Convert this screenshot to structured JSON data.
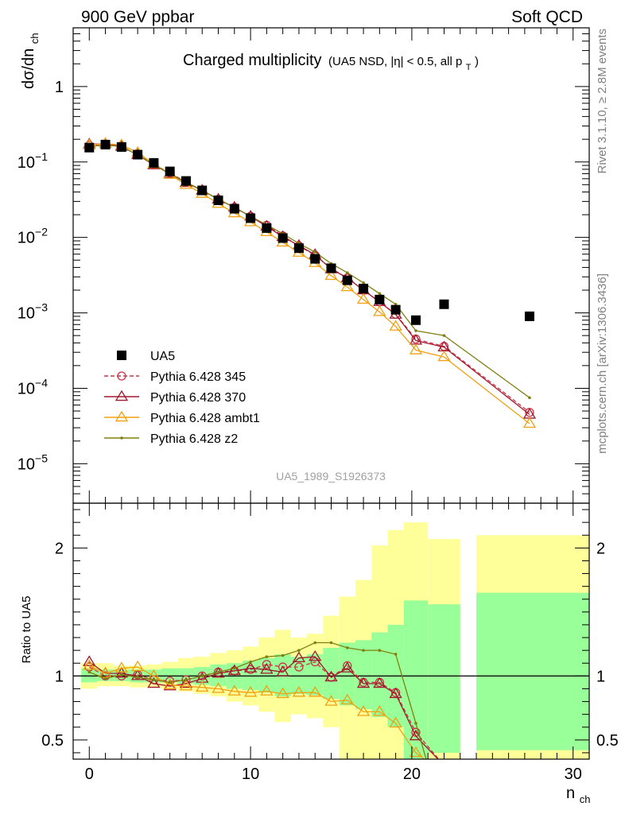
{
  "header": {
    "left": "900 GeV ppbar",
    "right": "Soft QCD"
  },
  "side_labels": {
    "rivet": "Rivet 3.1.10, ≥ 2.8M events",
    "mcplots": "mcplots.cern.ch [arXiv:1306.3436]"
  },
  "chart_data": [
    {
      "type": "line",
      "title": "Charged multiplicity",
      "subtitle": "(UA5 NSD, |η| < 0.5, all p",
      "subtitle_sub": "T",
      "subtitle_end": ")",
      "ylabel": "dσ/dn",
      "ylabel_sub": "ch",
      "xlabel": "n",
      "xlabel_sub": "ch",
      "yscale": "log",
      "xlim": [
        -1,
        31
      ],
      "ylim": [
        3e-06,
        6
      ],
      "x_ticks": [
        "0",
        "10",
        "20",
        "30"
      ],
      "y_ticks": [
        {
          "base": "10",
          "exp": "−5"
        },
        {
          "base": "10",
          "exp": "−4"
        },
        {
          "base": "10",
          "exp": "−3"
        },
        {
          "base": "10",
          "exp": "−2"
        },
        {
          "base": "10",
          "exp": "−1"
        },
        {
          "base": "1",
          "exp": ""
        }
      ],
      "watermark": "UA5_1989_S1926373",
      "legend_position": "bottom-left",
      "data": {
        "name": "UA5",
        "x": [
          0,
          1,
          2,
          3,
          4,
          5,
          6,
          7,
          8,
          9,
          10,
          11,
          12,
          13,
          14,
          15,
          16,
          17,
          18,
          19,
          20.25,
          22,
          27.3
        ],
        "y": [
          0.155,
          0.17,
          0.158,
          0.125,
          0.097,
          0.075,
          0.056,
          0.042,
          0.031,
          0.024,
          0.018,
          0.0133,
          0.0098,
          0.0072,
          0.0052,
          0.0039,
          0.0027,
          0.0021,
          0.0015,
          0.0011,
          0.0008,
          0.0013,
          0.0009
        ]
      },
      "series": [
        {
          "name": "Pythia 6.428 345",
          "color": "#cc3344",
          "marker": "circle",
          "dashed": true,
          "x": [
            0,
            1,
            2,
            3,
            4,
            5,
            6,
            7,
            8,
            9,
            10,
            11,
            12,
            13,
            14,
            15,
            16,
            17,
            18,
            19,
            20.25,
            22,
            27.3
          ],
          "y": [
            0.165,
            0.172,
            0.158,
            0.126,
            0.092,
            0.072,
            0.054,
            0.042,
            0.032,
            0.025,
            0.019,
            0.0145,
            0.0105,
            0.0077,
            0.0058,
            0.0039,
            0.0029,
            0.002,
            0.0014,
            0.00096,
            0.00045,
            0.00036,
            4.8e-05
          ]
        },
        {
          "name": "Pythia 6.428 370",
          "color": "#a01830",
          "marker": "triangle",
          "dashed": false,
          "x": [
            0,
            1,
            2,
            3,
            4,
            5,
            6,
            7,
            8,
            9,
            10,
            11,
            12,
            13,
            14,
            15,
            16,
            17,
            18,
            19,
            20.25,
            22,
            27.3
          ],
          "y": [
            0.172,
            0.174,
            0.16,
            0.124,
            0.091,
            0.07,
            0.053,
            0.042,
            0.032,
            0.025,
            0.019,
            0.014,
            0.0102,
            0.0078,
            0.0059,
            0.0038,
            0.0029,
            0.002,
            0.0014,
            0.00095,
            0.00043,
            0.00035,
            4.5e-05
          ]
        },
        {
          "name": "Pythia 6.428 ambt1",
          "color": "#f0a010",
          "marker": "triangle",
          "dashed": false,
          "x": [
            0,
            1,
            2,
            3,
            4,
            5,
            6,
            7,
            8,
            9,
            10,
            11,
            12,
            13,
            14,
            15,
            16,
            17,
            18,
            19,
            20.25,
            22,
            27.3
          ],
          "y": [
            0.168,
            0.175,
            0.168,
            0.133,
            0.094,
            0.068,
            0.05,
            0.038,
            0.028,
            0.021,
            0.016,
            0.0118,
            0.0086,
            0.0063,
            0.0046,
            0.0031,
            0.0022,
            0.0015,
            0.00103,
            0.00066,
            0.00032,
            0.00026,
            3.4e-05
          ]
        },
        {
          "name": "Pythia 6.428 z2",
          "color": "#808010",
          "marker": "dot",
          "dashed": false,
          "x": [
            0,
            1,
            2,
            3,
            4,
            5,
            6,
            7,
            8,
            9,
            10,
            11,
            12,
            13,
            14,
            15,
            16,
            17,
            18,
            19,
            20.25,
            22,
            27.3
          ],
          "y": [
            0.16,
            0.168,
            0.16,
            0.124,
            0.092,
            0.07,
            0.054,
            0.042,
            0.032,
            0.025,
            0.019,
            0.0147,
            0.0112,
            0.0083,
            0.0064,
            0.0045,
            0.0034,
            0.0025,
            0.0018,
            0.0013,
            0.00058,
            0.0005,
            7.5e-05
          ]
        }
      ]
    },
    {
      "type": "line",
      "ylabel": "Ratio to UA5",
      "xlim": [
        -1,
        31
      ],
      "ylim": [
        0.35,
        2.35
      ],
      "y_ticks": [
        "0.5",
        "1",
        "2"
      ],
      "reference_line": 1,
      "bands": [
        {
          "x0": -0.5,
          "x1": 0.5,
          "y_lo": 0.95,
          "y_hi": 1.06,
          "y_lo2": 0.9,
          "y_hi2": 1.1
        },
        {
          "x0": 0.5,
          "x1": 1.5,
          "y_lo": 0.96,
          "y_hi": 1.05,
          "y_lo2": 0.92,
          "y_hi2": 1.1
        },
        {
          "x0": 1.5,
          "x1": 2.5,
          "y_lo": 0.96,
          "y_hi": 1.05,
          "y_lo2": 0.92,
          "y_hi2": 1.08
        },
        {
          "x0": 2.5,
          "x1": 3.5,
          "y_lo": 0.95,
          "y_hi": 1.05,
          "y_lo2": 0.91,
          "y_hi2": 1.08
        },
        {
          "x0": 3.5,
          "x1": 4.5,
          "y_lo": 0.95,
          "y_hi": 1.05,
          "y_lo2": 0.91,
          "y_hi2": 1.09
        },
        {
          "x0": 4.5,
          "x1": 5.5,
          "y_lo": 0.95,
          "y_hi": 1.06,
          "y_lo2": 0.9,
          "y_hi2": 1.11
        },
        {
          "x0": 5.5,
          "x1": 6.5,
          "y_lo": 0.94,
          "y_hi": 1.06,
          "y_lo2": 0.88,
          "y_hi2": 1.14
        },
        {
          "x0": 6.5,
          "x1": 7.5,
          "y_lo": 0.93,
          "y_hi": 1.07,
          "y_lo2": 0.86,
          "y_hi2": 1.15
        },
        {
          "x0": 7.5,
          "x1": 8.5,
          "y_lo": 0.92,
          "y_hi": 1.09,
          "y_lo2": 0.84,
          "y_hi2": 1.18
        },
        {
          "x0": 8.5,
          "x1": 9.5,
          "y_lo": 0.9,
          "y_hi": 1.1,
          "y_lo2": 0.8,
          "y_hi2": 1.2
        },
        {
          "x0": 9.5,
          "x1": 10.5,
          "y_lo": 0.89,
          "y_hi": 1.12,
          "y_lo2": 0.77,
          "y_hi2": 1.23
        },
        {
          "x0": 10.5,
          "x1": 11.5,
          "y_lo": 0.87,
          "y_hi": 1.14,
          "y_lo2": 0.72,
          "y_hi2": 1.3
        },
        {
          "x0": 11.5,
          "x1": 12.5,
          "y_lo": 0.84,
          "y_hi": 1.17,
          "y_lo2": 0.64,
          "y_hi2": 1.36
        },
        {
          "x0": 12.5,
          "x1": 13.5,
          "y_lo": 0.86,
          "y_hi": 1.15,
          "y_lo2": 0.7,
          "y_hi2": 1.3
        },
        {
          "x0": 13.5,
          "x1": 14.5,
          "y_lo": 0.85,
          "y_hi": 1.17,
          "y_lo2": 0.67,
          "y_hi2": 1.33
        },
        {
          "x0": 14.5,
          "x1": 15.5,
          "y_lo": 0.82,
          "y_hi": 1.22,
          "y_lo2": 0.6,
          "y_hi2": 1.47
        },
        {
          "x0": 15.5,
          "x1": 16.5,
          "y_lo": 0.77,
          "y_hi": 1.26,
          "y_lo2": 0.3,
          "y_hi2": 1.62
        },
        {
          "x0": 16.5,
          "x1": 17.5,
          "y_lo": 0.74,
          "y_hi": 1.28,
          "y_lo2": 0.3,
          "y_hi2": 1.75
        },
        {
          "x0": 17.5,
          "x1": 18.5,
          "y_lo": 0.68,
          "y_hi": 1.34,
          "y_lo2": 0.3,
          "y_hi2": 2.02
        },
        {
          "x0": 18.5,
          "x1": 19.5,
          "y_lo": 0.6,
          "y_hi": 1.4,
          "y_lo2": 0.3,
          "y_hi2": 2.14
        },
        {
          "x0": 19.5,
          "x1": 21.0,
          "y_lo": 0.35,
          "y_hi": 1.59,
          "y_lo2": 0.3,
          "y_hi2": 2.2
        },
        {
          "x0": 21.0,
          "x1": 23.0,
          "y_lo": 0.4,
          "y_hi": 1.56,
          "y_lo2": 0.3,
          "y_hi2": 2.07
        },
        {
          "x0": 24.0,
          "x1": 31.0,
          "y_lo": 0.42,
          "y_hi": 1.65,
          "y_lo2": 0.3,
          "y_hi2": 2.1
        }
      ],
      "series": [
        {
          "name": "Pythia 6.428 345",
          "x": [
            0,
            1,
            2,
            3,
            4,
            5,
            6,
            7,
            8,
            9,
            10,
            11,
            12,
            13,
            14,
            15,
            16,
            17,
            18,
            19,
            20.25,
            22
          ],
          "y": [
            1.07,
            1.0,
            1.0,
            1.01,
            0.97,
            0.96,
            0.97,
            1.0,
            1.03,
            1.04,
            1.05,
            1.09,
            1.07,
            1.07,
            1.11,
            0.99,
            1.08,
            0.95,
            0.95,
            0.87,
            0.56,
            0.3
          ]
        },
        {
          "name": "Pythia 6.428 370",
          "x": [
            0,
            1,
            2,
            3,
            4,
            5,
            6,
            7,
            8,
            9,
            10,
            11,
            12,
            13,
            14,
            15,
            16,
            17,
            18,
            19,
            20.25,
            22
          ],
          "y": [
            1.11,
            1.02,
            1.02,
            1.0,
            0.94,
            0.92,
            0.94,
            0.98,
            1.02,
            1.04,
            1.06,
            1.05,
            1.03,
            1.14,
            1.15,
            0.99,
            1.06,
            0.94,
            0.94,
            0.86,
            0.53,
            0.3
          ]
        },
        {
          "name": "Pythia 6.428 ambt1",
          "x": [
            0,
            1,
            2,
            3,
            4,
            5,
            6,
            7,
            8,
            9,
            10,
            11,
            12,
            13,
            14,
            15,
            16,
            17,
            18,
            19,
            20.25,
            21.3
          ],
          "y": [
            1.08,
            1.02,
            1.06,
            1.07,
            1.0,
            0.93,
            0.92,
            0.91,
            0.9,
            0.88,
            0.87,
            0.88,
            0.86,
            0.87,
            0.87,
            0.8,
            0.81,
            0.72,
            0.72,
            0.63,
            0.4,
            0.3
          ]
        },
        {
          "name": "Pythia 6.428 z2",
          "x": [
            0,
            1,
            2,
            3,
            4,
            5,
            6,
            7,
            8,
            9,
            10,
            11,
            12,
            13,
            14,
            15,
            16,
            17,
            18,
            19,
            20.25,
            21.0
          ],
          "y": [
            1.03,
            0.98,
            1.01,
            0.99,
            0.97,
            0.95,
            0.97,
            1.0,
            1.03,
            1.06,
            1.11,
            1.15,
            1.16,
            1.2,
            1.26,
            1.26,
            1.22,
            1.2,
            1.2,
            1.17,
            0.63,
            0.3
          ]
        }
      ]
    }
  ]
}
